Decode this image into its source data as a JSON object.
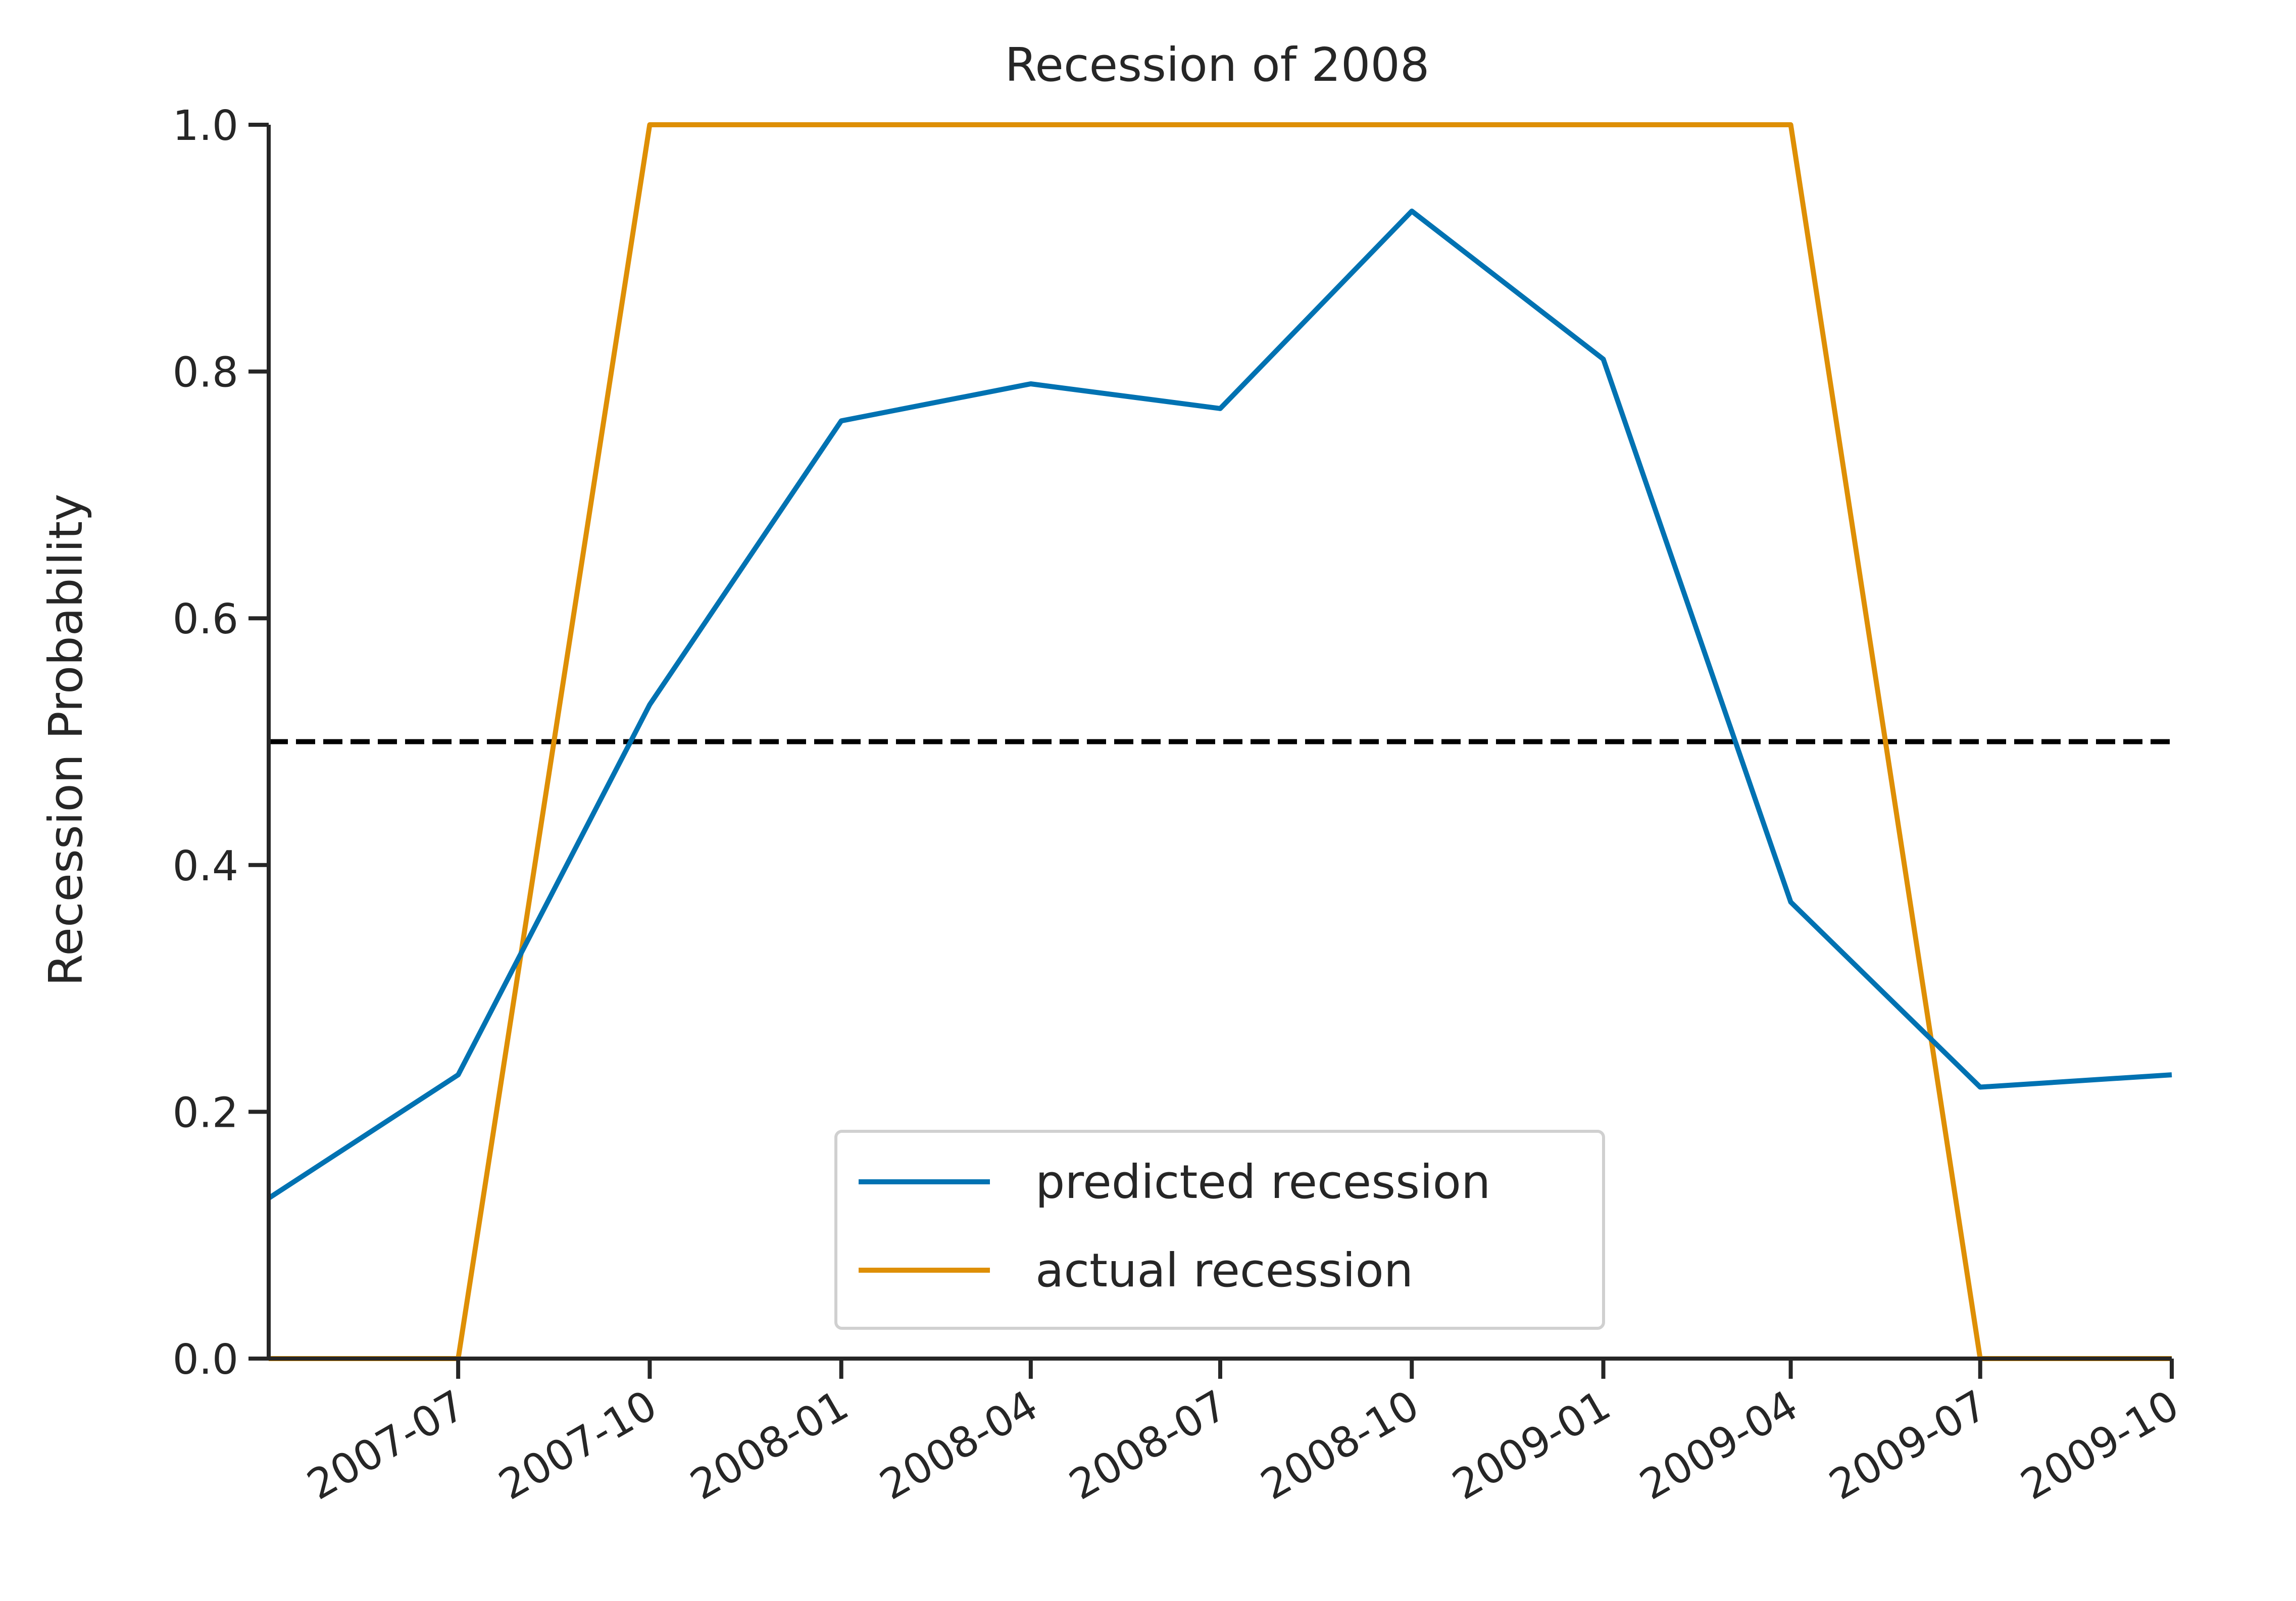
{
  "chart_data": {
    "type": "line",
    "title": "Recession of 2008",
    "xlabel": "",
    "ylabel": "Recession Probability",
    "ylim": [
      0,
      1
    ],
    "xlim": [
      "2007-04-01",
      "2009-10-01"
    ],
    "x_tick_labels": [
      "2007-07",
      "2007-10",
      "2008-01",
      "2008-04",
      "2008-07",
      "2008-10",
      "2009-01",
      "2009-04",
      "2009-07",
      "2009-10"
    ],
    "y_tick_labels": [
      "0.0",
      "0.2",
      "0.4",
      "0.6",
      "0.8",
      "1.0"
    ],
    "grid": false,
    "legend_position": "bottom-center",
    "x": [
      "2007-04-01",
      "2007-07-01",
      "2007-10-01",
      "2008-01-01",
      "2008-04-01",
      "2008-07-01",
      "2008-10-01",
      "2009-01-01",
      "2009-04-01",
      "2009-07-01",
      "2009-10-01"
    ],
    "series": [
      {
        "name": "predicted recession",
        "color": "#0072b2",
        "values": [
          0.13,
          0.23,
          0.53,
          0.76,
          0.79,
          0.77,
          0.93,
          0.81,
          0.37,
          0.22,
          0.23
        ]
      },
      {
        "name": "actual recession",
        "color": "#de8f05",
        "values": [
          0,
          0,
          1,
          1,
          1,
          1,
          1,
          1,
          1,
          0,
          0
        ]
      }
    ],
    "reference_line": {
      "y": 0.5,
      "style": "dashed",
      "color": "#000000"
    }
  }
}
